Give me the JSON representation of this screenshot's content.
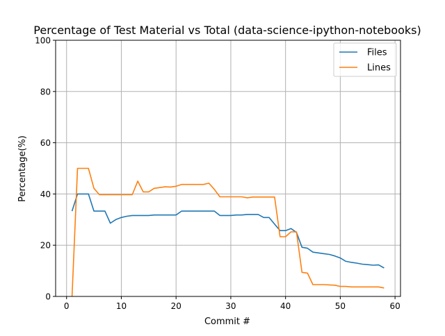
{
  "chart_data": {
    "type": "line",
    "title": "Percentage of Test Material vs Total (data-science-ipython-notebooks)",
    "xlabel": "Commit #",
    "ylabel": "Percentage(%)",
    "xlim": [
      -2,
      61
    ],
    "ylim": [
      0,
      100
    ],
    "xticks": [
      0,
      10,
      20,
      30,
      40,
      50,
      60
    ],
    "yticks": [
      0,
      20,
      40,
      60,
      80,
      100
    ],
    "grid": true,
    "legend_position": "top-right",
    "series": [
      {
        "name": "Files",
        "color": "#1f77b4",
        "points": [
          [
            1,
            33.3
          ],
          [
            2,
            40
          ],
          [
            3,
            40
          ],
          [
            4,
            40
          ],
          [
            5,
            33.3
          ],
          [
            6,
            33.3
          ],
          [
            7,
            33.3
          ],
          [
            8,
            28.6
          ],
          [
            9,
            30
          ],
          [
            10,
            30.8
          ],
          [
            11,
            31.3
          ],
          [
            12,
            31.6
          ],
          [
            13,
            31.6
          ],
          [
            14,
            31.6
          ],
          [
            15,
            31.6
          ],
          [
            16,
            31.8
          ],
          [
            17,
            31.8
          ],
          [
            18,
            31.8
          ],
          [
            19,
            31.8
          ],
          [
            20,
            31.8
          ],
          [
            21,
            33.3
          ],
          [
            22,
            33.3
          ],
          [
            23,
            33.3
          ],
          [
            24,
            33.3
          ],
          [
            25,
            33.3
          ],
          [
            26,
            33.3
          ],
          [
            27,
            33.3
          ],
          [
            28,
            31.6
          ],
          [
            29,
            31.6
          ],
          [
            30,
            31.6
          ],
          [
            31,
            31.8
          ],
          [
            32,
            31.8
          ],
          [
            33,
            32
          ],
          [
            34,
            32
          ],
          [
            35,
            32
          ],
          [
            36,
            30.8
          ],
          [
            37,
            30.8
          ],
          [
            38,
            28.2
          ],
          [
            39,
            25.7
          ],
          [
            40,
            25.7
          ],
          [
            41,
            26.5
          ],
          [
            42,
            25
          ],
          [
            43,
            19.2
          ],
          [
            44,
            18.8
          ],
          [
            45,
            17.3
          ],
          [
            46,
            17
          ],
          [
            47,
            16.7
          ],
          [
            48,
            16.4
          ],
          [
            49,
            15.8
          ],
          [
            50,
            15
          ],
          [
            51,
            13.7
          ],
          [
            52,
            13.3
          ],
          [
            53,
            13
          ],
          [
            54,
            12.6
          ],
          [
            55,
            12.4
          ],
          [
            56,
            12.2
          ],
          [
            57,
            12.3
          ],
          [
            58,
            11.1
          ]
        ]
      },
      {
        "name": "Lines",
        "color": "#ff7f0e",
        "points": [
          [
            1,
            0
          ],
          [
            2,
            50
          ],
          [
            3,
            50
          ],
          [
            4,
            50
          ],
          [
            5,
            42.2
          ],
          [
            6,
            39.7
          ],
          [
            7,
            39.7
          ],
          [
            8,
            39.7
          ],
          [
            9,
            39.7
          ],
          [
            10,
            39.7
          ],
          [
            11,
            39.7
          ],
          [
            12,
            39.7
          ],
          [
            13,
            45
          ],
          [
            14,
            40.8
          ],
          [
            15,
            40.8
          ],
          [
            16,
            42.2
          ],
          [
            17,
            42.5
          ],
          [
            18,
            42.8
          ],
          [
            19,
            42.7
          ],
          [
            20,
            43
          ],
          [
            21,
            43.7
          ],
          [
            22,
            43.7
          ],
          [
            23,
            43.7
          ],
          [
            24,
            43.7
          ],
          [
            25,
            43.7
          ],
          [
            26,
            44.2
          ],
          [
            27,
            41.8
          ],
          [
            28,
            38.9
          ],
          [
            29,
            38.9
          ],
          [
            30,
            38.9
          ],
          [
            31,
            38.9
          ],
          [
            32,
            38.9
          ],
          [
            33,
            38.5
          ],
          [
            34,
            38.8
          ],
          [
            35,
            38.8
          ],
          [
            36,
            38.8
          ],
          [
            37,
            38.8
          ],
          [
            38,
            38.8
          ],
          [
            39,
            23.3
          ],
          [
            40,
            23.3
          ],
          [
            41,
            25.2
          ],
          [
            42,
            25.2
          ],
          [
            43,
            9.4
          ],
          [
            44,
            9.1
          ],
          [
            45,
            4.6
          ],
          [
            46,
            4.6
          ],
          [
            47,
            4.6
          ],
          [
            48,
            4.5
          ],
          [
            49,
            4.4
          ],
          [
            50,
            3.9
          ],
          [
            51,
            3.9
          ],
          [
            52,
            3.7
          ],
          [
            53,
            3.7
          ],
          [
            54,
            3.7
          ],
          [
            55,
            3.7
          ],
          [
            56,
            3.7
          ],
          [
            57,
            3.7
          ],
          [
            58,
            3.3
          ]
        ]
      }
    ]
  }
}
